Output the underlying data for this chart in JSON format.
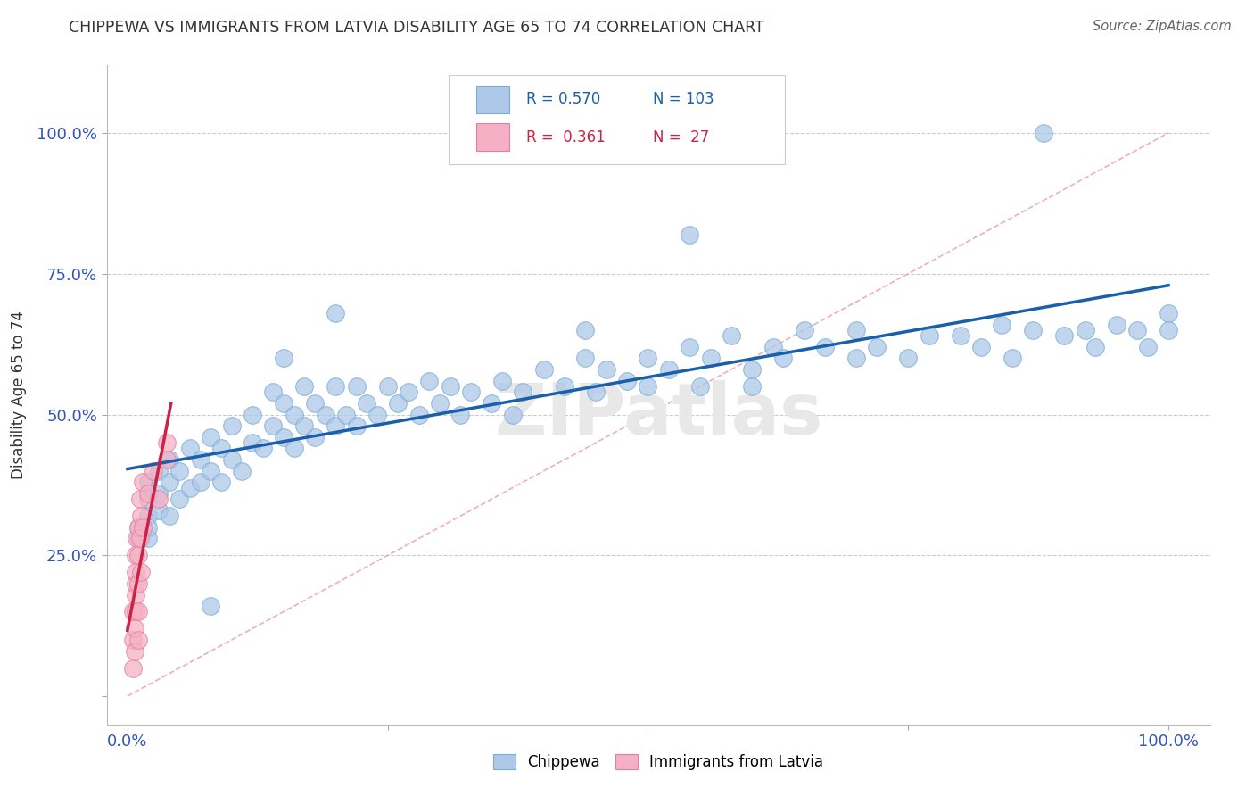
{
  "title": "CHIPPEWA VS IMMIGRANTS FROM LATVIA DISABILITY AGE 65 TO 74 CORRELATION CHART",
  "source": "Source: ZipAtlas.com",
  "ylabel": "Disability Age 65 to 74",
  "xlim": [
    -0.02,
    1.04
  ],
  "ylim": [
    -0.05,
    1.12
  ],
  "chippewa_R": 0.57,
  "chippewa_N": 103,
  "latvia_R": 0.361,
  "latvia_N": 27,
  "chippewa_color": "#adc8e8",
  "latvia_color": "#f5b0c5",
  "chippewa_line_color": "#1a5faa",
  "latvia_line_color": "#cc2244",
  "diagonal_color": "#e8a8b8",
  "chippewa_x": [
    0.01,
    0.01,
    0.02,
    0.02,
    0.02,
    0.02,
    0.02,
    0.03,
    0.03,
    0.03,
    0.04,
    0.04,
    0.04,
    0.05,
    0.05,
    0.06,
    0.06,
    0.07,
    0.07,
    0.08,
    0.08,
    0.09,
    0.09,
    0.1,
    0.1,
    0.11,
    0.12,
    0.12,
    0.13,
    0.14,
    0.14,
    0.15,
    0.15,
    0.16,
    0.16,
    0.17,
    0.17,
    0.18,
    0.18,
    0.19,
    0.2,
    0.2,
    0.21,
    0.22,
    0.22,
    0.23,
    0.24,
    0.25,
    0.26,
    0.27,
    0.28,
    0.29,
    0.3,
    0.31,
    0.32,
    0.33,
    0.35,
    0.36,
    0.37,
    0.38,
    0.4,
    0.42,
    0.44,
    0.45,
    0.46,
    0.48,
    0.5,
    0.5,
    0.52,
    0.54,
    0.55,
    0.56,
    0.58,
    0.6,
    0.6,
    0.62,
    0.63,
    0.65,
    0.67,
    0.7,
    0.7,
    0.72,
    0.75,
    0.77,
    0.8,
    0.82,
    0.84,
    0.85,
    0.87,
    0.9,
    0.92,
    0.93,
    0.95,
    0.97,
    0.98,
    1.0,
    1.0,
    0.88,
    0.54,
    0.44,
    0.2,
    0.15,
    0.08
  ],
  "chippewa_y": [
    0.3,
    0.28,
    0.32,
    0.35,
    0.28,
    0.3,
    0.38,
    0.33,
    0.4,
    0.36,
    0.32,
    0.38,
    0.42,
    0.35,
    0.4,
    0.37,
    0.44,
    0.38,
    0.42,
    0.4,
    0.46,
    0.38,
    0.44,
    0.42,
    0.48,
    0.4,
    0.45,
    0.5,
    0.44,
    0.48,
    0.54,
    0.46,
    0.52,
    0.44,
    0.5,
    0.48,
    0.55,
    0.46,
    0.52,
    0.5,
    0.48,
    0.55,
    0.5,
    0.48,
    0.55,
    0.52,
    0.5,
    0.55,
    0.52,
    0.54,
    0.5,
    0.56,
    0.52,
    0.55,
    0.5,
    0.54,
    0.52,
    0.56,
    0.5,
    0.54,
    0.58,
    0.55,
    0.6,
    0.54,
    0.58,
    0.56,
    0.55,
    0.6,
    0.58,
    0.62,
    0.55,
    0.6,
    0.64,
    0.58,
    0.55,
    0.62,
    0.6,
    0.65,
    0.62,
    0.6,
    0.65,
    0.62,
    0.6,
    0.64,
    0.64,
    0.62,
    0.66,
    0.6,
    0.65,
    0.64,
    0.65,
    0.62,
    0.66,
    0.65,
    0.62,
    0.68,
    0.65,
    1.0,
    0.82,
    0.65,
    0.68,
    0.6,
    0.16
  ],
  "latvia_x": [
    0.005,
    0.005,
    0.005,
    0.007,
    0.007,
    0.008,
    0.008,
    0.008,
    0.008,
    0.008,
    0.009,
    0.01,
    0.01,
    0.01,
    0.01,
    0.01,
    0.012,
    0.012,
    0.013,
    0.013,
    0.015,
    0.015,
    0.02,
    0.025,
    0.03,
    0.038,
    0.038
  ],
  "latvia_y": [
    0.1,
    0.05,
    0.15,
    0.12,
    0.08,
    0.18,
    0.2,
    0.25,
    0.15,
    0.22,
    0.28,
    0.3,
    0.1,
    0.25,
    0.2,
    0.15,
    0.35,
    0.28,
    0.32,
    0.22,
    0.38,
    0.3,
    0.36,
    0.4,
    0.35,
    0.42,
    0.45
  ]
}
